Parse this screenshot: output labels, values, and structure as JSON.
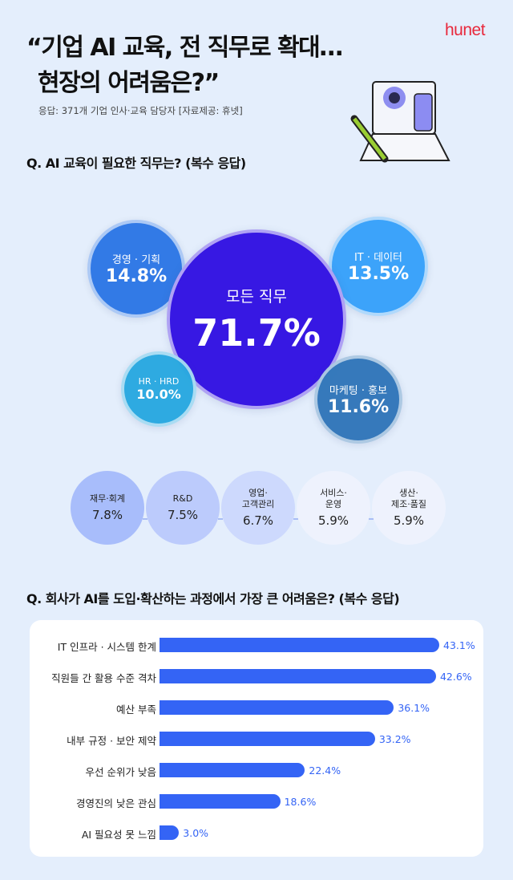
{
  "logo": "hunet",
  "title": [
    "“기업 AI 교육, 전 직무로 확대…",
    "현장의 어려움은?”"
  ],
  "subtitle": "응답: 371개 기업 인사·교육 담당자 [자료제공: 휴넷]",
  "q1": "Q. AI 교육이 필요한 직무는? (복수 응답)",
  "q2": "Q. 회사가 AI를 도입·확산하는 과정에서 가장 큰 어려움은? (복수 응답)",
  "chart_data": [
    {
      "type": "bubble",
      "unit": "%",
      "categories": [
        "모든 직무",
        "경영 · 기획",
        "IT · 데이터",
        "HR · HRD",
        "마케팅 · 홍보",
        "재무·회계",
        "R&D",
        "영업·\n고객관리",
        "서비스·\n운영",
        "생산·\n제조·품질"
      ],
      "labels": [
        "71.7%",
        "14.8%",
        "13.5%",
        "10.0%",
        "11.6%",
        "7.8%",
        "7.5%",
        "6.7%",
        "5.9%",
        "5.9%"
      ],
      "values": [
        71.7,
        14.8,
        13.5,
        10.0,
        11.6,
        7.8,
        7.5,
        6.7,
        5.9,
        5.9
      ],
      "colors": [
        "#3718e3",
        "#2b76e6",
        "#36a0fa",
        "#27a8e0",
        "#2f75b9",
        "#a8bdfb",
        "#bccbfc",
        "#cdd9fd",
        "#eef2fd",
        "#eef2fd"
      ]
    },
    {
      "type": "bar",
      "orientation": "horizontal",
      "unit": "%",
      "xlim": [
        0,
        43.1
      ],
      "categories": [
        "IT 인프라 · 시스템 한계",
        "직원들 간 활용 수준 격차",
        "예산 부족",
        "내부 규정 · 보안 제약",
        "우선 순위가 낮음",
        "경영진의 낮은 관심",
        "AI 필요성 못 느낌"
      ],
      "values": [
        43.1,
        42.6,
        36.1,
        33.2,
        22.4,
        18.6,
        3.0
      ],
      "labels": [
        "43.1%",
        "42.6%",
        "36.1%",
        "33.2%",
        "22.4%",
        "18.6%",
        "3.0%"
      ],
      "color": "#3464f5"
    }
  ]
}
